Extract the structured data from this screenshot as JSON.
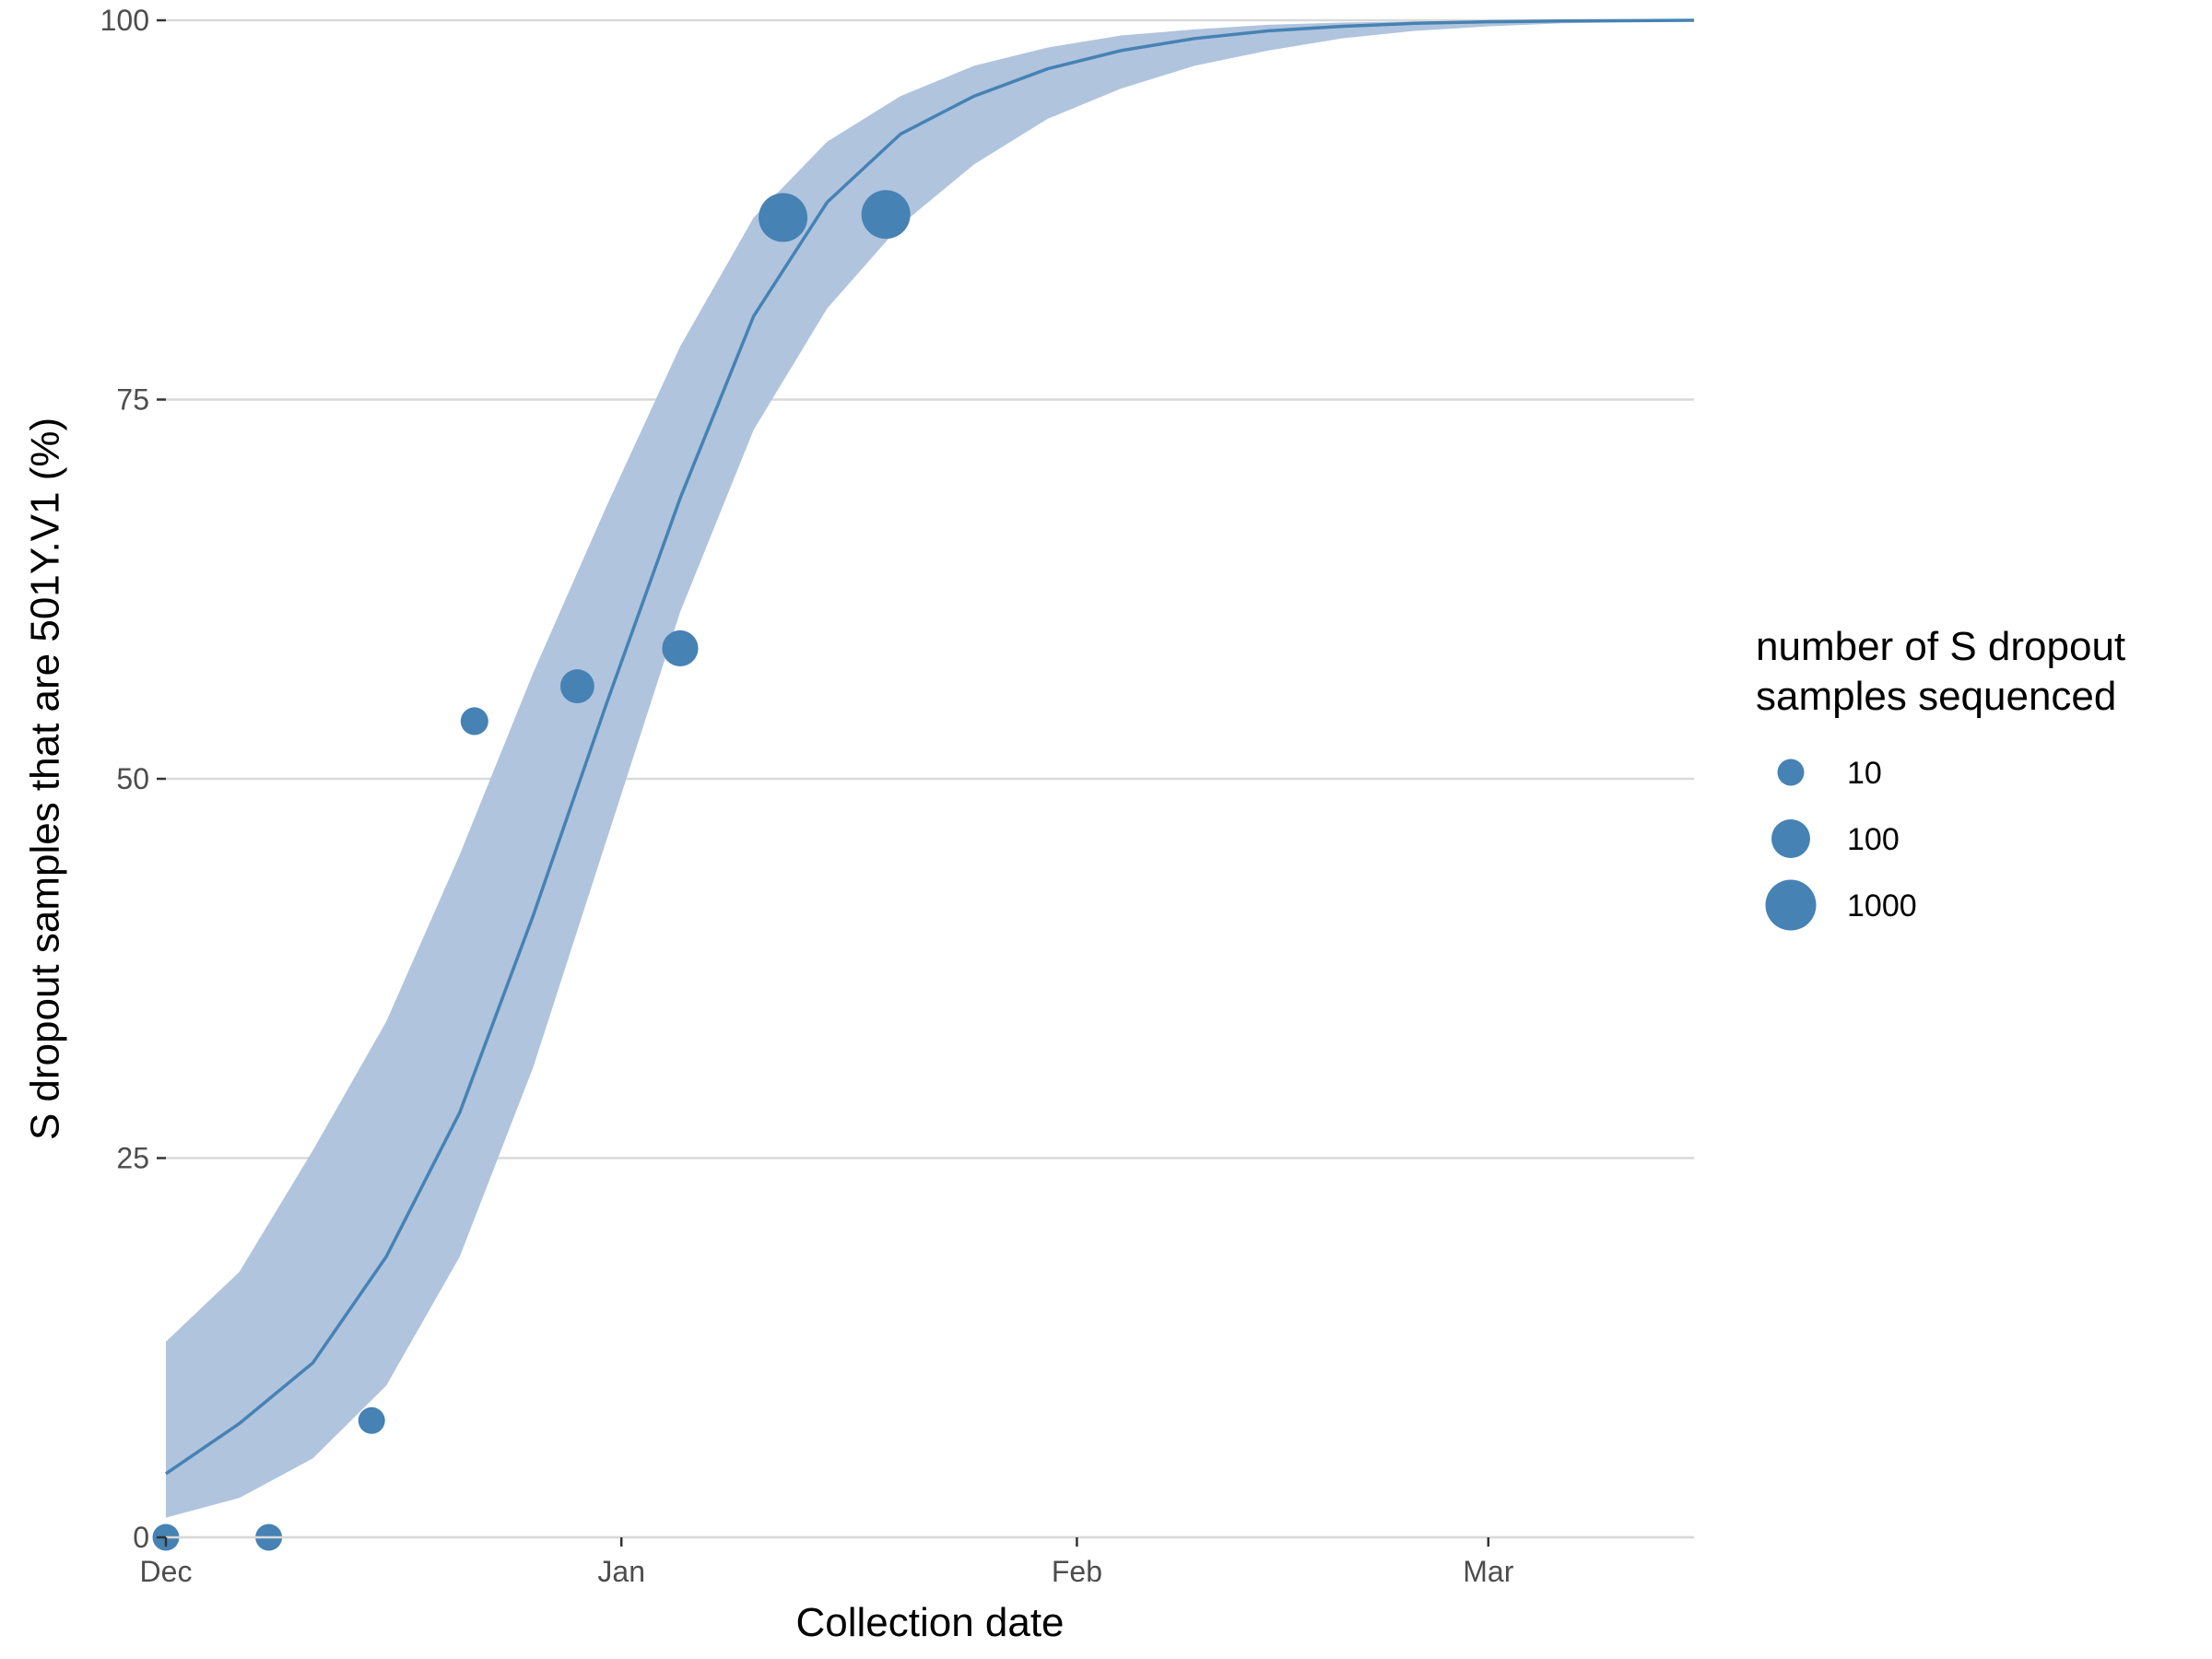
{
  "chart_data": {
    "type": "scatter",
    "title": "",
    "xlabel": "Collection date",
    "ylabel": "S dropout samples that are 501Y.V1 (%)",
    "xlim": [
      "2020-12-01",
      "2021-03-15"
    ],
    "ylim": [
      0,
      100
    ],
    "x_ticks": [
      {
        "date": "2020-12-01",
        "label": "Dec"
      },
      {
        "date": "2021-01-01",
        "label": "Jan"
      },
      {
        "date": "2021-02-01",
        "label": "Feb"
      },
      {
        "date": "2021-03-01",
        "label": "Mar"
      }
    ],
    "y_ticks": [
      0,
      25,
      50,
      75,
      100
    ],
    "grid": true,
    "colors": {
      "points": "#4682b4",
      "line": "#4682b4",
      "ribbon": "#b0c4de",
      "grid": "#d9d9d9"
    },
    "points": [
      {
        "date": "2020-12-01",
        "y": 0,
        "n": 10
      },
      {
        "date": "2020-12-08",
        "y": 0,
        "n": 10
      },
      {
        "date": "2020-12-15",
        "y": 7.7,
        "n": 10
      },
      {
        "date": "2020-12-22",
        "y": 53.8,
        "n": 12
      },
      {
        "date": "2020-12-29",
        "y": 56.1,
        "n": 40
      },
      {
        "date": "2021-01-05",
        "y": 58.6,
        "n": 60
      },
      {
        "date": "2021-01-12",
        "y": 87,
        "n": 700
      },
      {
        "date": "2021-01-19",
        "y": 87.2,
        "n": 700
      }
    ],
    "fit": {
      "series_name": "",
      "dates": [
        "2020-12-01",
        "2020-12-06",
        "2020-12-11",
        "2020-12-16",
        "2020-12-21",
        "2020-12-26",
        "2020-12-31",
        "2021-01-05",
        "2021-01-10",
        "2021-01-15",
        "2021-01-20",
        "2021-01-25",
        "2021-01-30",
        "2021-02-04",
        "2021-02-09",
        "2021-02-14",
        "2021-02-19",
        "2021-02-24",
        "2021-03-01",
        "2021-03-06",
        "2021-03-15"
      ],
      "y": [
        4.2,
        7.5,
        11.5,
        18.5,
        28,
        41,
        55,
        68.5,
        80.5,
        88,
        92.5,
        95,
        96.8,
        98,
        98.8,
        99.3,
        99.6,
        99.8,
        99.9,
        99.95,
        100
      ],
      "lower": [
        1.3,
        2.6,
        5.2,
        10,
        18.5,
        31,
        46,
        61,
        73,
        81,
        86.5,
        90.5,
        93.5,
        95.5,
        97,
        98,
        98.8,
        99.3,
        99.6,
        99.8,
        99.95
      ],
      "upper": [
        12.9,
        17.5,
        25.5,
        34,
        45,
        57,
        68,
        78.5,
        87,
        92,
        95,
        97,
        98.2,
        99,
        99.4,
        99.7,
        99.85,
        99.92,
        99.96,
        99.98,
        100
      ]
    },
    "legend": {
      "title_lines": [
        "number of S dropout",
        "samples sequenced"
      ],
      "placement": "right",
      "entries": [
        {
          "label": "10",
          "n": 10
        },
        {
          "label": "100",
          "n": 100
        },
        {
          "label": "1000",
          "n": 1000
        }
      ]
    }
  }
}
